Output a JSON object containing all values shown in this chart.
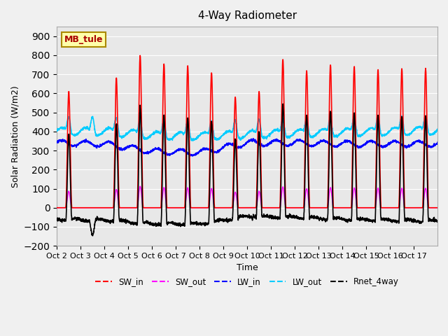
{
  "title": "4-Way Radiometer",
  "xlabel": "Time",
  "ylabel": "Solar Radiation (W/m2)",
  "ylim": [
    -200,
    950
  ],
  "yticks": [
    -200,
    -100,
    0,
    100,
    200,
    300,
    400,
    500,
    600,
    700,
    800,
    900
  ],
  "x_labels": [
    "Oct 2",
    "Oct 3",
    "Oct 4",
    "Oct 5",
    "Oct 6",
    "Oct 7",
    "Oct 8",
    "Oct 9",
    "Oct 10",
    "Oct 11",
    "Oct 12",
    "Oct 13",
    "Oct 14",
    "Oct 15",
    "Oct 16",
    "Oct 17"
  ],
  "num_days": 16,
  "annotation_label": "MB_tule",
  "annotation_box_color": "#ffffaa",
  "annotation_border_color": "#aa8800",
  "annotation_text_color": "#aa0000",
  "fig_bg_color": "#f0f0f0",
  "plot_bg_color": "#e8e8e8",
  "series": {
    "SW_in": {
      "color": "#ff0000",
      "lw": 1.2
    },
    "SW_out": {
      "color": "#ff00ff",
      "lw": 1.0
    },
    "LW_in": {
      "color": "#0000ff",
      "lw": 1.2
    },
    "LW_out": {
      "color": "#00ccff",
      "lw": 1.2
    },
    "Rnet_4way": {
      "color": "#000000",
      "lw": 1.2
    }
  },
  "grid_color": "#ffffff",
  "grid_lw": 0.8,
  "sw_in_peaks": [
    610,
    0,
    680,
    800,
    755,
    745,
    710,
    580,
    610,
    780,
    720,
    750,
    740,
    725,
    730,
    730
  ]
}
